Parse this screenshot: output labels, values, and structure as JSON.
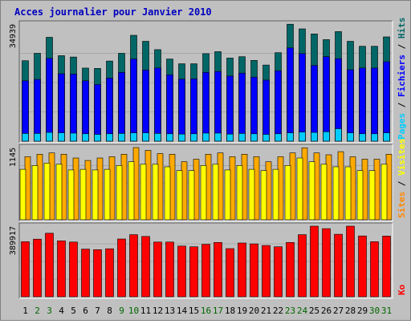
{
  "title": "Acces journalier pour Janvier 2010",
  "colors": {
    "background": "#c0c0c0",
    "title": "#0000c0",
    "pages": "#00ccff",
    "fichiers": "#0000ff",
    "hits": "#006666",
    "visites": "#ffaa00",
    "sites": "#ffff00",
    "ko": "#ff0000",
    "day_normal": "#000000",
    "day_weekend": "#006600"
  },
  "chart_data": {
    "type": "bar",
    "categories": [
      "1",
      "2",
      "3",
      "4",
      "5",
      "6",
      "7",
      "8",
      "9",
      "10",
      "11",
      "12",
      "13",
      "14",
      "15",
      "16",
      "17",
      "18",
      "19",
      "20",
      "21",
      "22",
      "23",
      "24",
      "25",
      "26",
      "27",
      "28",
      "29",
      "30",
      "31"
    ],
    "weekend_days": [
      "2",
      "3",
      "9",
      "10",
      "16",
      "17",
      "23",
      "24",
      "30",
      "31"
    ],
    "panels": [
      {
        "id": "top",
        "max_label": "34939",
        "max": 34939,
        "axis_label_parts": [
          {
            "text": "Pages",
            "color": "#00ccff"
          },
          {
            "text": " / ",
            "color": "#000000"
          },
          {
            "text": "Fichiers",
            "color": "#0000ff"
          },
          {
            "text": " / ",
            "color": "#000000"
          },
          {
            "text": "Hits",
            "color": "#006666"
          }
        ],
        "series": [
          {
            "name": "Hits",
            "color": "#006666",
            "values": [
              24000,
              26200,
              31000,
              25500,
              25100,
              21800,
              21700,
              23900,
              26200,
              31600,
              29800,
              27300,
              24500,
              23100,
              23100,
              26100,
              26700,
              24800,
              25200,
              24100,
              22700,
              26400,
              34900,
              33500,
              32000,
              30300,
              32700,
              29800,
              28300,
              28300,
              31100
            ]
          },
          {
            "name": "Fichiers",
            "color": "#0000ff",
            "values": [
              18000,
              18400,
              24700,
              20100,
              20000,
              18000,
              16900,
              18800,
              20500,
              24500,
              21200,
              21800,
              19800,
              18500,
              18600,
              20500,
              20800,
              19400,
              20300,
              19100,
              18200,
              21000,
              27800,
              26100,
              22600,
              25200,
              24600,
              21300,
              21800,
              21800,
              23700
            ]
          },
          {
            "name": "Pages",
            "color": "#00ccff",
            "values": [
              2300,
              2300,
              2600,
              2500,
              2400,
              2200,
              2000,
              2200,
              2300,
              2500,
              2500,
              2300,
              2200,
              2100,
              2200,
              2400,
              2400,
              2100,
              2300,
              2200,
              2000,
              2200,
              2500,
              2700,
              2600,
              2800,
              3700,
              2500,
              2200,
              2200,
              2500
            ]
          }
        ]
      },
      {
        "id": "middle",
        "max_label": "1145",
        "max": 1145,
        "axis_label_parts": [
          {
            "text": "Sites",
            "color": "#ff8800"
          },
          {
            "text": " / ",
            "color": "#000000"
          },
          {
            "text": "Visites",
            "color": "#ffff00"
          }
        ],
        "series": [
          {
            "name": "Visites",
            "color": "#ffaa00",
            "values": [
              1000,
              1040,
              1060,
              1040,
              980,
              940,
              980,
              1000,
              1040,
              1145,
              1100,
              1050,
              1040,
              920,
              960,
              1040,
              1060,
              1000,
              1040,
              1000,
              920,
              1000,
              1060,
              1140,
              1060,
              1030,
              1080,
              1000,
              960,
              960,
              1040
            ]
          },
          {
            "name": "Sites",
            "color": "#ffff00",
            "values": [
              800,
              860,
              900,
              880,
              790,
              800,
              790,
              800,
              860,
              920,
              880,
              880,
              840,
              780,
              780,
              860,
              880,
              790,
              860,
              800,
              780,
              800,
              860,
              980,
              920,
              880,
              840,
              840,
              780,
              780,
              880
            ]
          }
        ]
      },
      {
        "id": "bottom",
        "max_label": "389917",
        "max": 389917,
        "axis_label_parts": [
          {
            "text": "Ko",
            "color": "#ff0000"
          }
        ],
        "series": [
          {
            "name": "Ko",
            "color": "#ff0000",
            "values": [
              304000,
              318000,
              351000,
              309000,
              302000,
              263000,
              260000,
              265000,
              319000,
              343000,
              333000,
              302000,
              302000,
              280000,
              276000,
              290000,
              300000,
              266000,
              297000,
              292000,
              283000,
              276000,
              300000,
              343000,
              390000,
              376000,
              345000,
              390000,
              336000,
              304000,
              335000
            ]
          }
        ]
      }
    ]
  }
}
